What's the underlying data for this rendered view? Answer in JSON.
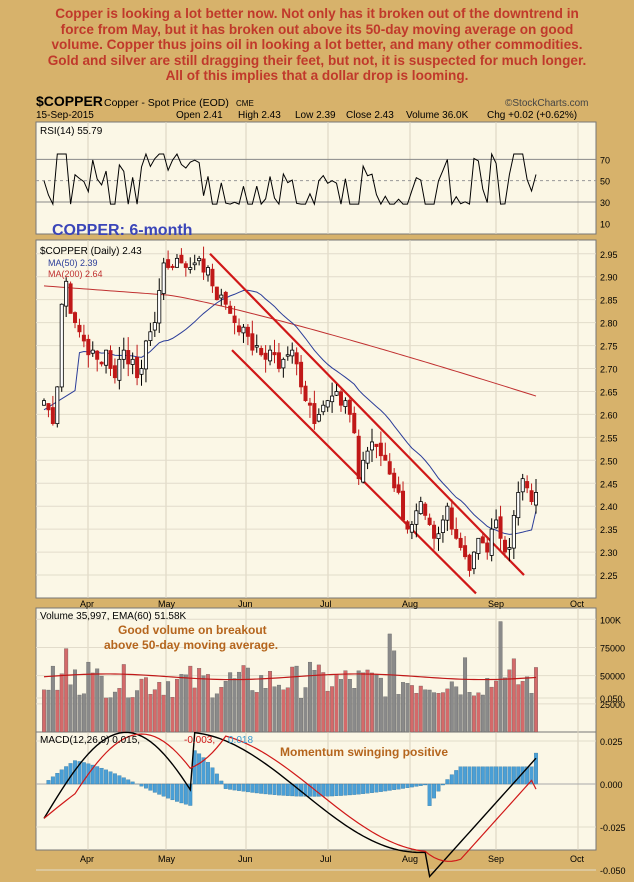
{
  "headline": {
    "lines": [
      "Copper is looking a lot better now. Not only has it broken out of the downtrend in",
      "force from May, but it has broken out above its 50-day moving average on good",
      "volume. Copper thus joins oil in looking a lot better, and many other commodities.",
      "Gold and silver are still dragging their feet, but not, it is suspected for much longer.",
      "All of this implies that a dollar drop is looming."
    ]
  },
  "chart_data": {
    "type": "candlestick",
    "symbol": "$COPPER",
    "description": "Copper - Spot Price (EOD)",
    "exchange": "CME",
    "watermark": "©StockCharts.com",
    "date": "15-Sep-2015",
    "quote": {
      "open": "Open 2.41",
      "high": "High 2.43",
      "low": "Low 2.39",
      "close": "Close 2.43",
      "volume": "Volume 36.0K",
      "chg": "Chg +0.02 (+0.62%)"
    },
    "title_annotation": "COPPER: 6-month",
    "price_legend": {
      "main": "$COPPER (Daily) 2.43",
      "ma50": "MA(50) 2.39",
      "ma200": "MA(200) 2.64"
    },
    "months": [
      "Apr",
      "May",
      "Jun",
      "Jul",
      "Aug",
      "Sep",
      "Oct"
    ],
    "rsi": {
      "label": "RSI(14) 55.79",
      "ticks": [
        70,
        50,
        30,
        10
      ],
      "last": 55.79
    },
    "price_axis": {
      "ticks": [
        2.95,
        2.9,
        2.85,
        2.8,
        2.75,
        2.7,
        2.65,
        2.6,
        2.55,
        2.5,
        2.45,
        2.4,
        2.35,
        2.3,
        2.25
      ],
      "range": [
        2.2,
        2.98
      ]
    },
    "candles": [
      2.63,
      2.61,
      2.58,
      2.66,
      2.84,
      2.89,
      2.82,
      2.8,
      2.78,
      2.76,
      2.73,
      2.74,
      2.72,
      2.71,
      2.74,
      2.7,
      2.68,
      2.72,
      2.74,
      2.71,
      2.72,
      2.68,
      2.7,
      2.76,
      2.78,
      2.8,
      2.87,
      2.93,
      2.92,
      2.92,
      2.94,
      2.93,
      2.92,
      2.92,
      2.93,
      2.94,
      2.91,
      2.92,
      2.88,
      2.85,
      2.86,
      2.84,
      2.82,
      2.8,
      2.78,
      2.79,
      2.77,
      2.74,
      2.75,
      2.73,
      2.72,
      2.74,
      2.73,
      2.7,
      2.72,
      2.73,
      2.74,
      2.71,
      2.66,
      2.63,
      2.62,
      2.58,
      2.6,
      2.62,
      2.63,
      2.64,
      2.65,
      2.62,
      2.63,
      2.6,
      2.56,
      2.46,
      2.5,
      2.52,
      2.54,
      2.53,
      2.51,
      2.5,
      2.47,
      2.44,
      2.43,
      2.37,
      2.35,
      2.36,
      2.39,
      2.41,
      2.38,
      2.36,
      2.33,
      2.34,
      2.37,
      2.4,
      2.35,
      2.33,
      2.31,
      2.29,
      2.26,
      2.3,
      2.33,
      2.32,
      2.3,
      2.35,
      2.37,
      2.33,
      2.3,
      2.31,
      2.38,
      2.43,
      2.46,
      2.44,
      2.41,
      2.43
    ],
    "ma50": {
      "label": "MA(50)",
      "value": 2.39
    },
    "ma200": {
      "label": "MA(200)",
      "value": 2.64
    },
    "volume": {
      "label": "Volume 35,997, EMA(60) 51.58K",
      "ticks": [
        "100K",
        "75000",
        "50000",
        "25000"
      ],
      "annotation_line1": "Good volume on breakout",
      "annotation_line2": "above 50-day moving average."
    },
    "macd": {
      "label_prefix": "MACD(12,26,9) 0.015,",
      "label_signal": "-0.003,",
      "label_hist": "0.018",
      "ticks": [
        "0.050",
        "0.025",
        "0.000",
        "-0.025",
        "-0.050"
      ],
      "annotation": "Momentum swinging positive"
    }
  },
  "colors": {
    "background": "#d7b26b",
    "panel": "#fbf7e6",
    "text_red": "#c0392b",
    "channel": "#d01818",
    "ma50": "#2b3d99",
    "ma200": "#c03030",
    "vol_up": "#d46a6a",
    "vol_down": "#8a8a8a",
    "macd_hist": "#4a9fd6",
    "annotation_blue": "#3a45b8",
    "annotation_brown": "#b5651d"
  }
}
